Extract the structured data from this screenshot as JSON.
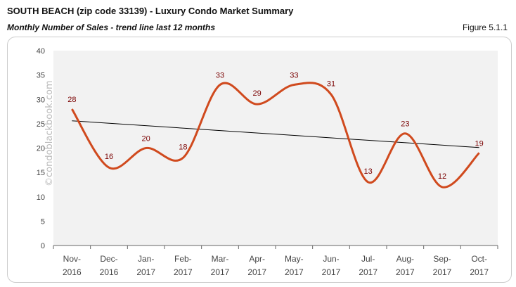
{
  "header": {
    "title": "SOUTH BEACH (zip code 33139) - Luxury Condo Market Summary",
    "subtitle": "Monthly Number of Sales - trend line last 12 months",
    "figure": "Figure 5.1.1"
  },
  "watermark": "©condoblackbook.com",
  "chart_data": {
    "type": "line",
    "title": "",
    "categories": [
      [
        "Nov-",
        "2016"
      ],
      [
        "Dec-",
        "2016"
      ],
      [
        "Jan-",
        "2017"
      ],
      [
        "Feb-",
        "2017"
      ],
      [
        "Mar-",
        "2017"
      ],
      [
        "Apr-",
        "2017"
      ],
      [
        "May-",
        "2017"
      ],
      [
        "Jun-",
        "2017"
      ],
      [
        "Jul-",
        "2017"
      ],
      [
        "Aug-",
        "2017"
      ],
      [
        "Sep-",
        "2017"
      ],
      [
        "Oct-",
        "2017"
      ]
    ],
    "values": [
      28,
      16,
      20,
      18,
      33,
      29,
      33,
      31,
      13,
      23,
      12,
      19
    ],
    "trend_line": {
      "start": 25.6,
      "end": 20.1
    },
    "ylim": [
      0,
      40
    ],
    "yticks": [
      0,
      5,
      10,
      15,
      20,
      25,
      30,
      35,
      40
    ],
    "smooth": true,
    "grid": false,
    "colors": {
      "line": "#d04a1e",
      "trend": "#000000",
      "labels": "#7a0000",
      "plot_bg": "#f2f2f2"
    }
  }
}
